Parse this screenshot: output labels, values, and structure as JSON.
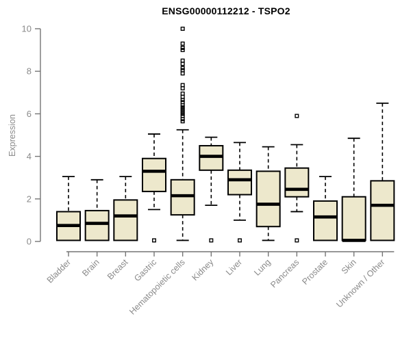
{
  "chart_data": {
    "type": "boxplot",
    "title": "ENSG00000112212 - TSPO2",
    "ylabel": "Expression",
    "xlabel": "",
    "ylim": [
      0,
      10
    ],
    "yticks": [
      0,
      2,
      4,
      6,
      8,
      10
    ],
    "grid": false,
    "legend": false,
    "categories": [
      "Bladder",
      "Brain",
      "Breast",
      "Gastric",
      "Hematopoietic cells",
      "Kidney",
      "Liver",
      "Lung",
      "Pancreas",
      "Prostate",
      "Skin",
      "Unknown / Other"
    ],
    "boxes": [
      {
        "category": "Bladder",
        "min": 0.05,
        "q1": 0.05,
        "median": 0.75,
        "q3": 1.4,
        "max": 3.05,
        "outliers": []
      },
      {
        "category": "Brain",
        "min": 0.05,
        "q1": 0.05,
        "median": 0.85,
        "q3": 1.45,
        "max": 2.9,
        "outliers": []
      },
      {
        "category": "Breast",
        "min": 0.05,
        "q1": 0.05,
        "median": 1.2,
        "q3": 1.95,
        "max": 3.05,
        "outliers": []
      },
      {
        "category": "Gastric",
        "min": 1.5,
        "q1": 2.35,
        "median": 3.3,
        "q3": 3.9,
        "max": 5.05,
        "outliers": [
          0.05
        ]
      },
      {
        "category": "Hematopoietic cells",
        "min": 0.05,
        "q1": 1.25,
        "median": 2.15,
        "q3": 2.9,
        "max": 5.25,
        "outliers": [
          5.65,
          5.75,
          5.9,
          6.0,
          6.1,
          6.2,
          6.3,
          6.4,
          6.55,
          6.65,
          6.8,
          6.95,
          7.2,
          7.35,
          7.9,
          8.05,
          8.15,
          8.35,
          8.5,
          9.0,
          9.1,
          9.3,
          10.0
        ]
      },
      {
        "category": "Kidney",
        "min": 1.7,
        "q1": 3.35,
        "median": 4.0,
        "q3": 4.5,
        "max": 4.9,
        "outliers": [
          0.05
        ]
      },
      {
        "category": "Liver",
        "min": 1.0,
        "q1": 2.2,
        "median": 2.9,
        "q3": 3.35,
        "max": 4.65,
        "outliers": [
          0.05
        ]
      },
      {
        "category": "Lung",
        "min": 0.05,
        "q1": 0.7,
        "median": 1.75,
        "q3": 3.3,
        "max": 4.45,
        "outliers": []
      },
      {
        "category": "Pancreas",
        "min": 1.4,
        "q1": 2.1,
        "median": 2.45,
        "q3": 3.45,
        "max": 4.55,
        "outliers": [
          5.9,
          0.05
        ]
      },
      {
        "category": "Prostate",
        "min": 0.05,
        "q1": 0.05,
        "median": 1.15,
        "q3": 1.9,
        "max": 3.05,
        "outliers": []
      },
      {
        "category": "Skin",
        "min": 0.05,
        "q1": 0.05,
        "median": 0.05,
        "q3": 2.1,
        "max": 4.85,
        "outliers": []
      },
      {
        "category": "Unknown / Other",
        "min": 0.05,
        "q1": 0.05,
        "median": 1.7,
        "q3": 2.85,
        "max": 6.5,
        "outliers": []
      }
    ],
    "colors": {
      "box_fill": "#EDE8CC",
      "box_stroke": "#000000",
      "median": "#000000",
      "whisker": "#000000",
      "outlier_stroke": "#000000",
      "axis": "#757575",
      "tick_label": "#8a8a8a",
      "title": "#000000",
      "background": "#FFFFFF"
    }
  }
}
